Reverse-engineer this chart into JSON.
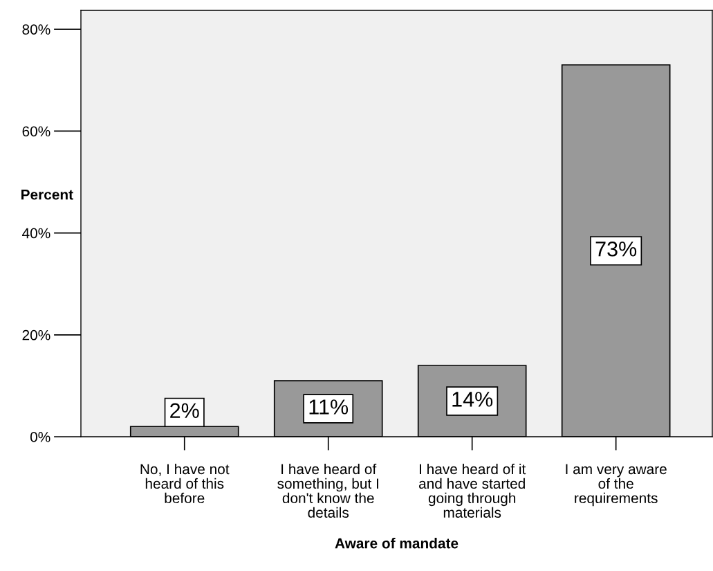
{
  "chart_data": {
    "type": "bar",
    "xlabel": "Aware of mandate",
    "ylabel": "Percent",
    "categories": [
      "No, I have not\nheard of this\nbefore",
      "I have heard of\nsomething, but I\ndon't know the\ndetails",
      "I have heard of it\nand have started\ngoing through\nmaterials",
      "I am very aware\nof the\nrequirements"
    ],
    "values": [
      2,
      11,
      14,
      73
    ],
    "color": "#999999",
    "data_labels": true,
    "ylim": [
      0,
      83.7
    ],
    "yticks": [
      {
        "value": 0,
        "label": "0%"
      },
      {
        "value": 20,
        "label": "20%"
      },
      {
        "value": 40,
        "label": "40%"
      },
      {
        "value": 60,
        "label": "60%"
      },
      {
        "value": 80,
        "label": "80%"
      }
    ],
    "value_labels": [
      "2%",
      "11%",
      "14%",
      "73%"
    ],
    "grid": false
  }
}
